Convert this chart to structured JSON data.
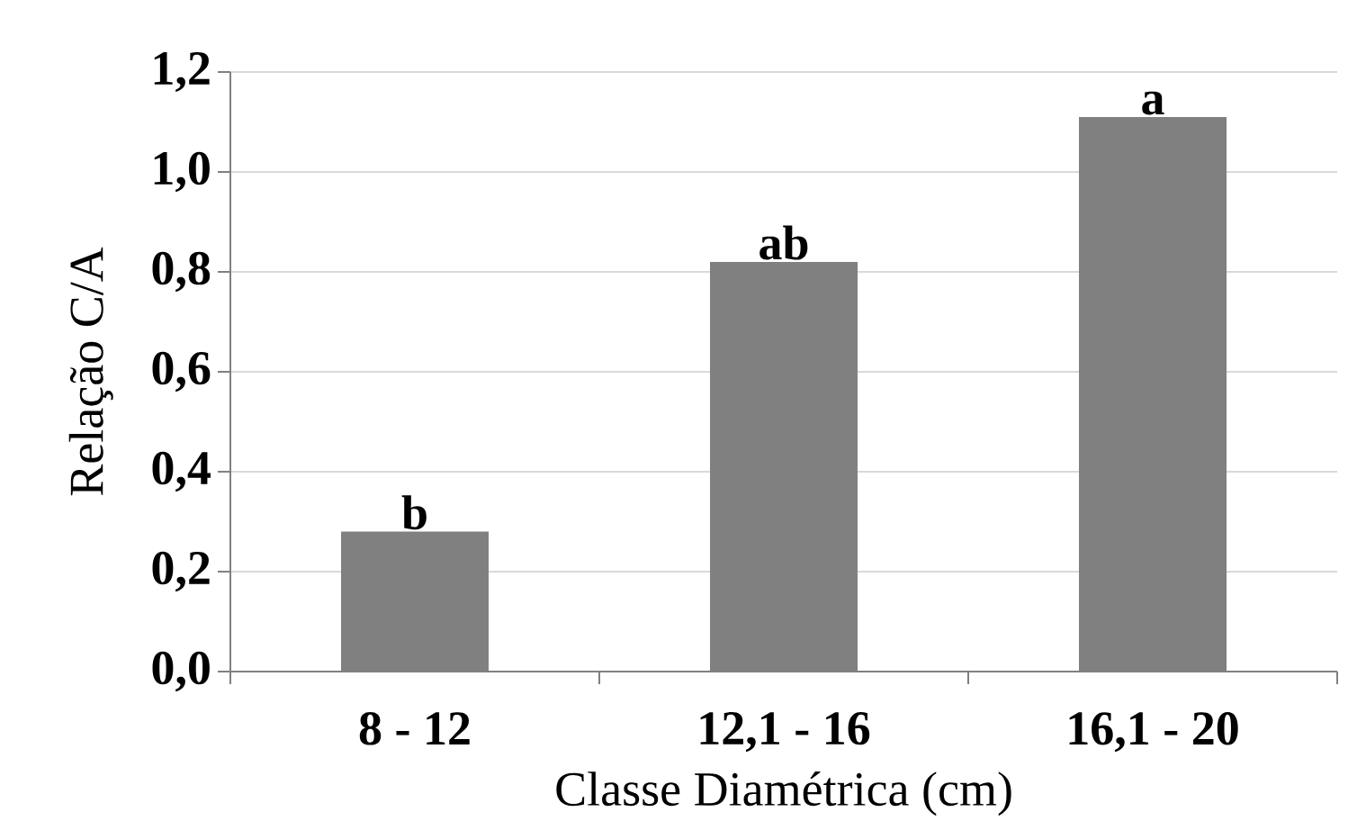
{
  "chart_data": {
    "type": "bar",
    "xlabel": "Classe Diamétrica (cm)",
    "ylabel": "Relação C/A",
    "categories": [
      "8 - 12",
      "12,1 - 16",
      "16,1 - 20"
    ],
    "values": [
      0.28,
      0.82,
      1.11
    ],
    "color": "#808080",
    "ylim": [
      0,
      1.2
    ],
    "yticks": [
      {
        "value": 0,
        "label": "0,0"
      },
      {
        "value": 0.2,
        "label": "0,2"
      },
      {
        "value": 0.4,
        "label": "0,4"
      },
      {
        "value": 0.6,
        "label": "0,6"
      },
      {
        "value": 0.8,
        "label": "0,8"
      },
      {
        "value": 1.0,
        "label": "1,0"
      },
      {
        "value": 1.2,
        "label": "1,2"
      }
    ],
    "grid": "y",
    "annotations": [
      {
        "text": "b",
        "x": "8 - 12",
        "y": 0.28
      },
      {
        "text": "ab",
        "x": "12,1 - 16",
        "y": 0.82
      },
      {
        "text": "a",
        "x": "16,1 - 20",
        "y": 1.11
      }
    ]
  }
}
